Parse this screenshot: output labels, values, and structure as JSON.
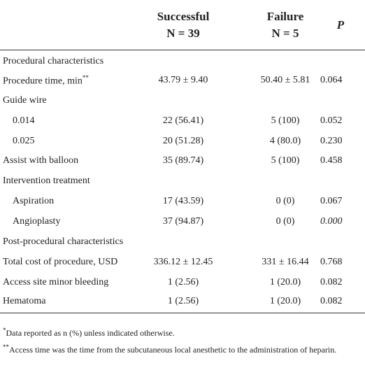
{
  "header": {
    "columns": [
      {
        "title": "Successful",
        "n": "N = 39"
      },
      {
        "title": "Failure",
        "n": "N = 5"
      },
      {
        "title": "P"
      }
    ]
  },
  "rows": [
    {
      "label": "Procedural characteristics"
    },
    {
      "label": "Procedure time, min",
      "sup": "**",
      "cells": [
        "43.79 ± 9.40",
        "50.40 ± 5.81",
        "0.064"
      ]
    },
    {
      "label": "Guide wire"
    },
    {
      "label": "0.014",
      "cells": [
        "22 (56.41)",
        "5 (100)",
        "0.052"
      ]
    },
    {
      "label": "0.025",
      "cells": [
        "20 (51.28)",
        "4 (80.0)",
        "0.230"
      ]
    },
    {
      "label": "Assist with balloon",
      "cells": [
        "35 (89.74)",
        "5 (100)",
        "0.458"
      ]
    },
    {
      "label": "Intervention treatment"
    },
    {
      "label": "Aspiration",
      "cells": [
        "17 (43.59)",
        "0 (0)",
        "0.067"
      ]
    },
    {
      "label": "Angioplasty",
      "cells": [
        "37 (94.87)",
        "0 (0)",
        "0.000"
      ]
    },
    {
      "label": "Post-procedural characteristics"
    },
    {
      "label": "Total cost of procedure, USD",
      "cells": [
        "336.12 ± 12.45",
        "331 ± 16.44",
        "0.768"
      ]
    },
    {
      "label": "Access site minor bleeding",
      "cells": [
        "1 (2.56)",
        "1 (20.0)",
        "0.082"
      ]
    },
    {
      "label": "Hematoma",
      "cells": [
        "1 (2.56)",
        "1 (20.0)",
        "0.082"
      ]
    }
  ],
  "footnotes": [
    {
      "mark": "*",
      "text": "Data reported as n (%) unless indicated otherwise."
    },
    {
      "mark": "**",
      "text": "Access time was the time from the subcutaneous local anesthetic to the administration of heparin."
    }
  ]
}
